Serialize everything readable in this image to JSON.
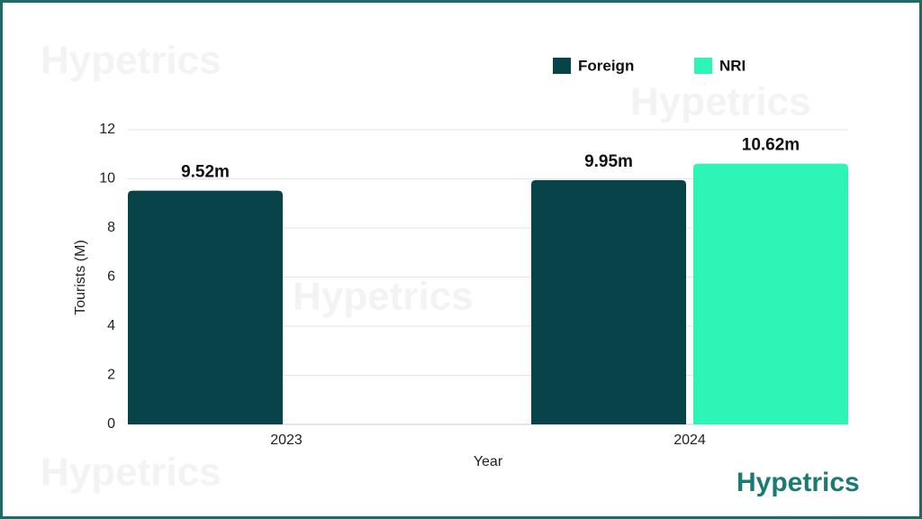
{
  "chart_data": {
    "type": "bar",
    "watermark": "Hypetrics",
    "logo": "Hypetrics",
    "categories": [
      "2023",
      "2024"
    ],
    "series": [
      {
        "name": "Foreign",
        "color": "#08434a",
        "values": [
          9.52,
          9.95
        ],
        "value_labels": [
          "9.52m",
          "9.95m"
        ]
      },
      {
        "name": "NRI",
        "color": "#2cf5b6",
        "values": [
          null,
          10.62
        ],
        "value_labels": [
          null,
          "10.62m"
        ]
      }
    ],
    "xlabel": "Year",
    "ylabel": "Tourists (M)",
    "ylim": [
      0,
      12
    ],
    "yticks": [
      0,
      2,
      4,
      6,
      8,
      10,
      12
    ],
    "grid": true
  }
}
